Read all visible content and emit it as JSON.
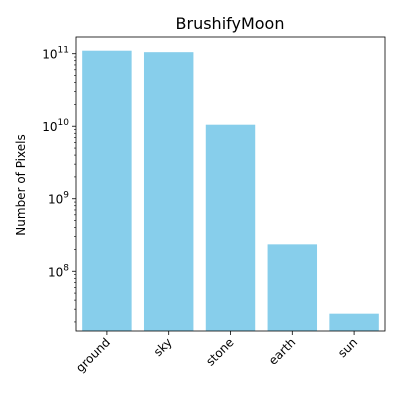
{
  "chart_data": {
    "type": "bar",
    "title": "BrushifyMoon",
    "xlabel": "",
    "ylabel": "Number of Pixels",
    "yscale": "log",
    "ylim": [
      15000000,
      170000000000
    ],
    "grid": false,
    "legend": "none",
    "bar_color": "#87CEEB",
    "categories": [
      "ground",
      "sky",
      "stone",
      "earth",
      "sun"
    ],
    "values": [
      110000000000,
      105000000000,
      10500000000,
      235000000,
      26000000
    ],
    "y_ticks": [
      {
        "value": 100000000,
        "base": "10",
        "exp": "8"
      },
      {
        "value": 1000000000,
        "base": "10",
        "exp": "9"
      },
      {
        "value": 10000000000,
        "base": "10",
        "exp": "10"
      },
      {
        "value": 100000000000,
        "base": "10",
        "exp": "11"
      }
    ]
  }
}
